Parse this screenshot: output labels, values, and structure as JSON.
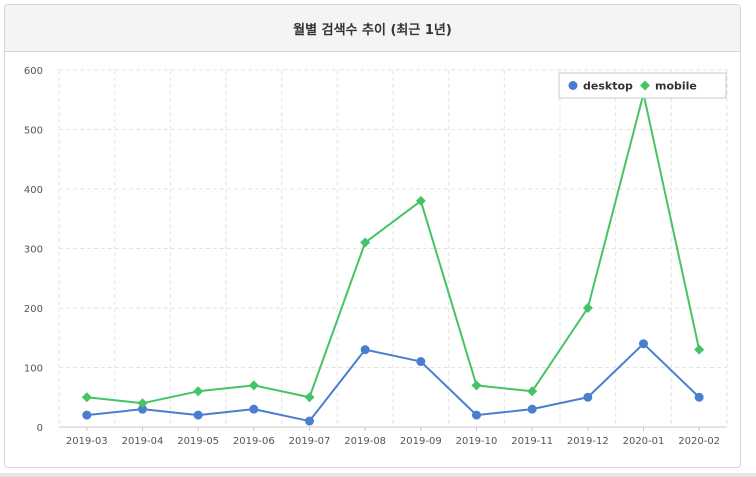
{
  "chart_data": {
    "type": "line",
    "title": "월별 검색수 추이 (최근 1년)",
    "xlabel": "",
    "ylabel": "",
    "categories": [
      "2019-03",
      "2019-04",
      "2019-05",
      "2019-06",
      "2019-07",
      "2019-08",
      "2019-09",
      "2019-10",
      "2019-11",
      "2019-12",
      "2020-01",
      "2020-02"
    ],
    "ylim": [
      0,
      600
    ],
    "yticks": [
      0,
      100,
      200,
      300,
      400,
      500,
      600
    ],
    "grid": true,
    "legend_position": "top-right",
    "series": [
      {
        "name": "desktop",
        "color": "#4a7fcf",
        "marker": "circle",
        "values": [
          20,
          30,
          20,
          30,
          10,
          130,
          110,
          20,
          30,
          50,
          140,
          50
        ]
      },
      {
        "name": "mobile",
        "color": "#44c466",
        "marker": "diamond",
        "values": [
          50,
          40,
          60,
          70,
          50,
          310,
          380,
          70,
          60,
          200,
          560,
          130
        ]
      }
    ]
  }
}
